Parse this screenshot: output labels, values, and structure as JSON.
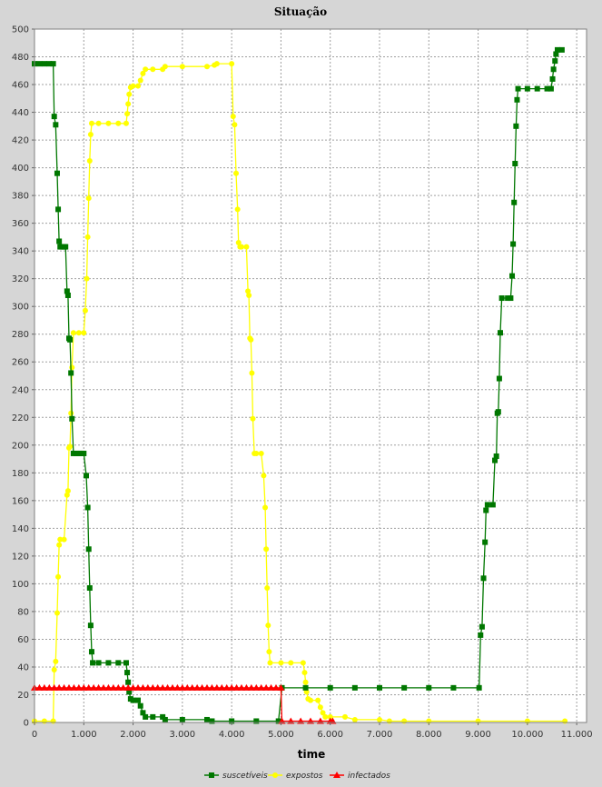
{
  "chart_data": {
    "type": "line",
    "title": "Situação",
    "xlabel": "time",
    "ylabel": "",
    "xlim": [
      0,
      11200
    ],
    "ylim": [
      0,
      500
    ],
    "xticks": [
      0,
      1000,
      2000,
      3000,
      4000,
      5000,
      6000,
      7000,
      8000,
      9000,
      10000,
      11000
    ],
    "xtick_labels": [
      "0",
      "1.000",
      "2.000",
      "3.000",
      "4.000",
      "5.000",
      "6.000",
      "7.000",
      "8.000",
      "9.000",
      "10.000",
      "11.000"
    ],
    "yticks": [
      0,
      20,
      40,
      60,
      80,
      100,
      120,
      140,
      160,
      180,
      200,
      220,
      240,
      260,
      280,
      300,
      320,
      340,
      360,
      380,
      400,
      420,
      440,
      460,
      480,
      500
    ],
    "grid": true,
    "legend": "bottom",
    "series": [
      {
        "name": "suscetíveis",
        "color": "#007700",
        "marker": "square",
        "points": [
          [
            0,
            475
          ],
          [
            100,
            475
          ],
          [
            200,
            475
          ],
          [
            300,
            475
          ],
          [
            380,
            475
          ],
          [
            400,
            437
          ],
          [
            430,
            431
          ],
          [
            460,
            396
          ],
          [
            480,
            370
          ],
          [
            500,
            347
          ],
          [
            520,
            343
          ],
          [
            560,
            343
          ],
          [
            600,
            343
          ],
          [
            630,
            343
          ],
          [
            660,
            311
          ],
          [
            680,
            308
          ],
          [
            700,
            277
          ],
          [
            720,
            276
          ],
          [
            740,
            252
          ],
          [
            760,
            219
          ],
          [
            790,
            194
          ],
          [
            850,
            194
          ],
          [
            900,
            194
          ],
          [
            950,
            194
          ],
          [
            1000,
            194
          ],
          [
            1050,
            178
          ],
          [
            1080,
            155
          ],
          [
            1100,
            125
          ],
          [
            1120,
            97
          ],
          [
            1140,
            70
          ],
          [
            1160,
            51
          ],
          [
            1180,
            43
          ],
          [
            1300,
            43
          ],
          [
            1500,
            43
          ],
          [
            1700,
            43
          ],
          [
            1860,
            43
          ],
          [
            1880,
            36
          ],
          [
            1900,
            29
          ],
          [
            1920,
            22
          ],
          [
            1950,
            17
          ],
          [
            2000,
            16
          ],
          [
            2100,
            16
          ],
          [
            2150,
            12
          ],
          [
            2200,
            7
          ],
          [
            2250,
            4
          ],
          [
            2400,
            4
          ],
          [
            2600,
            4
          ],
          [
            2650,
            2
          ],
          [
            3000,
            2
          ],
          [
            3500,
            2
          ],
          [
            3600,
            1
          ],
          [
            4000,
            1
          ],
          [
            4500,
            1
          ],
          [
            4950,
            1
          ],
          [
            5020,
            25
          ],
          [
            5500,
            25
          ],
          [
            6000,
            25
          ],
          [
            6500,
            25
          ],
          [
            7000,
            25
          ],
          [
            7500,
            25
          ],
          [
            8000,
            25
          ],
          [
            8500,
            25
          ],
          [
            9020,
            25
          ],
          [
            9050,
            63
          ],
          [
            9080,
            69
          ],
          [
            9110,
            104
          ],
          [
            9140,
            130
          ],
          [
            9160,
            153
          ],
          [
            9190,
            157
          ],
          [
            9300,
            157
          ],
          [
            9340,
            189
          ],
          [
            9370,
            192
          ],
          [
            9390,
            223
          ],
          [
            9410,
            224
          ],
          [
            9430,
            248
          ],
          [
            9450,
            281
          ],
          [
            9480,
            306
          ],
          [
            9600,
            306
          ],
          [
            9660,
            306
          ],
          [
            9690,
            322
          ],
          [
            9710,
            345
          ],
          [
            9730,
            375
          ],
          [
            9750,
            403
          ],
          [
            9770,
            430
          ],
          [
            9790,
            449
          ],
          [
            9810,
            457
          ],
          [
            10000,
            457
          ],
          [
            10200,
            457
          ],
          [
            10400,
            457
          ],
          [
            10480,
            457
          ],
          [
            10510,
            464
          ],
          [
            10530,
            471
          ],
          [
            10560,
            477
          ],
          [
            10580,
            482
          ],
          [
            10610,
            485
          ],
          [
            10700,
            485
          ]
        ]
      },
      {
        "name": "expostos",
        "color": "#ffff00",
        "marker": "circle",
        "points": [
          [
            0,
            1
          ],
          [
            200,
            1
          ],
          [
            380,
            1
          ],
          [
            400,
            38
          ],
          [
            430,
            44
          ],
          [
            460,
            79
          ],
          [
            480,
            105
          ],
          [
            500,
            128
          ],
          [
            520,
            132
          ],
          [
            600,
            132
          ],
          [
            660,
            164
          ],
          [
            680,
            167
          ],
          [
            700,
            198
          ],
          [
            720,
            199
          ],
          [
            740,
            223
          ],
          [
            760,
            256
          ],
          [
            790,
            281
          ],
          [
            900,
            281
          ],
          [
            1000,
            281
          ],
          [
            1030,
            297
          ],
          [
            1060,
            320
          ],
          [
            1080,
            350
          ],
          [
            1100,
            378
          ],
          [
            1120,
            405
          ],
          [
            1140,
            424
          ],
          [
            1160,
            432
          ],
          [
            1300,
            432
          ],
          [
            1500,
            432
          ],
          [
            1700,
            432
          ],
          [
            1860,
            432
          ],
          [
            1880,
            439
          ],
          [
            1900,
            446
          ],
          [
            1920,
            453
          ],
          [
            1950,
            458
          ],
          [
            2000,
            459
          ],
          [
            2100,
            459
          ],
          [
            2150,
            463
          ],
          [
            2200,
            468
          ],
          [
            2250,
            471
          ],
          [
            2400,
            471
          ],
          [
            2600,
            471
          ],
          [
            2650,
            473
          ],
          [
            3000,
            473
          ],
          [
            3500,
            473
          ],
          [
            3650,
            474
          ],
          [
            3700,
            475
          ],
          [
            4000,
            475
          ],
          [
            4030,
            437
          ],
          [
            4060,
            431
          ],
          [
            4090,
            396
          ],
          [
            4120,
            370
          ],
          [
            4140,
            346
          ],
          [
            4170,
            343
          ],
          [
            4200,
            343
          ],
          [
            4300,
            343
          ],
          [
            4330,
            311
          ],
          [
            4350,
            308
          ],
          [
            4370,
            277
          ],
          [
            4390,
            276
          ],
          [
            4410,
            252
          ],
          [
            4430,
            219
          ],
          [
            4460,
            194
          ],
          [
            4500,
            194
          ],
          [
            4600,
            194
          ],
          [
            4650,
            178
          ],
          [
            4680,
            155
          ],
          [
            4700,
            125
          ],
          [
            4720,
            97
          ],
          [
            4740,
            70
          ],
          [
            4760,
            51
          ],
          [
            4780,
            43
          ],
          [
            5000,
            43
          ],
          [
            5200,
            43
          ],
          [
            5450,
            43
          ],
          [
            5480,
            36
          ],
          [
            5500,
            29
          ],
          [
            5520,
            22
          ],
          [
            5550,
            17
          ],
          [
            5600,
            16
          ],
          [
            5750,
            16
          ],
          [
            5800,
            11
          ],
          [
            5850,
            7
          ],
          [
            5900,
            4
          ],
          [
            6000,
            4
          ],
          [
            6300,
            4
          ],
          [
            6500,
            2
          ],
          [
            7000,
            2
          ],
          [
            7200,
            1
          ],
          [
            7500,
            1
          ],
          [
            8000,
            1
          ],
          [
            9000,
            1
          ],
          [
            10000,
            1
          ],
          [
            10760,
            1
          ]
        ]
      },
      {
        "name": "infectados",
        "color": "#ff0000",
        "marker": "triangle",
        "points": [
          [
            0,
            25
          ],
          [
            100,
            25
          ],
          [
            200,
            25
          ],
          [
            300,
            25
          ],
          [
            400,
            25
          ],
          [
            500,
            25
          ],
          [
            600,
            25
          ],
          [
            700,
            25
          ],
          [
            800,
            25
          ],
          [
            900,
            25
          ],
          [
            1000,
            25
          ],
          [
            1100,
            25
          ],
          [
            1200,
            25
          ],
          [
            1300,
            25
          ],
          [
            1400,
            25
          ],
          [
            1500,
            25
          ],
          [
            1600,
            25
          ],
          [
            1700,
            25
          ],
          [
            1800,
            25
          ],
          [
            1900,
            25
          ],
          [
            2000,
            25
          ],
          [
            2100,
            25
          ],
          [
            2200,
            25
          ],
          [
            2300,
            25
          ],
          [
            2400,
            25
          ],
          [
            2500,
            25
          ],
          [
            2600,
            25
          ],
          [
            2700,
            25
          ],
          [
            2800,
            25
          ],
          [
            2900,
            25
          ],
          [
            3000,
            25
          ],
          [
            3100,
            25
          ],
          [
            3200,
            25
          ],
          [
            3300,
            25
          ],
          [
            3400,
            25
          ],
          [
            3500,
            25
          ],
          [
            3600,
            25
          ],
          [
            3700,
            25
          ],
          [
            3800,
            25
          ],
          [
            3900,
            25
          ],
          [
            4000,
            25
          ],
          [
            4100,
            25
          ],
          [
            4200,
            25
          ],
          [
            4300,
            25
          ],
          [
            4400,
            25
          ],
          [
            4500,
            25
          ],
          [
            4600,
            25
          ],
          [
            4700,
            25
          ],
          [
            4800,
            25
          ],
          [
            4900,
            25
          ],
          [
            5000,
            25
          ],
          [
            5020,
            1
          ],
          [
            5200,
            1
          ],
          [
            5400,
            1
          ],
          [
            5600,
            1
          ],
          [
            5800,
            1
          ],
          [
            6000,
            1
          ],
          [
            6050,
            1
          ]
        ]
      }
    ]
  }
}
